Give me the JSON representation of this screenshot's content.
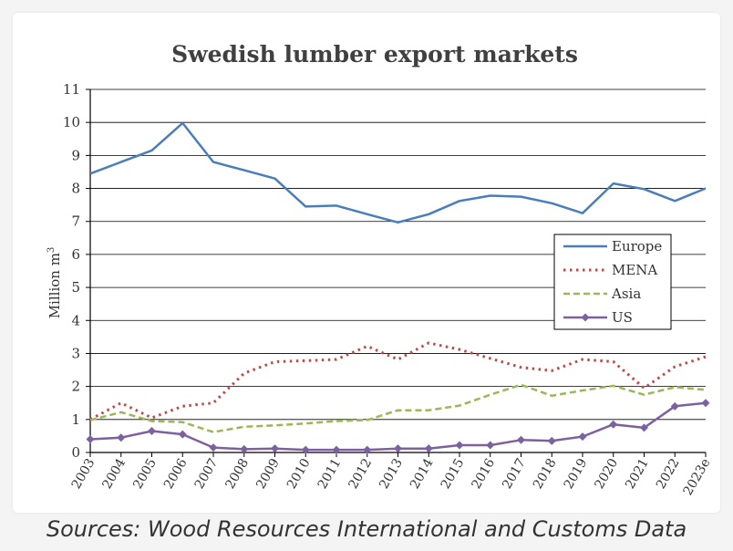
{
  "chart_data": {
    "type": "line",
    "title": "Swedish lumber export markets",
    "ylabel": "Million m",
    "ylabel_sup": "3",
    "xlabel": "",
    "ylim": [
      0,
      11
    ],
    "yticks": [
      "0",
      "1",
      "2",
      "3",
      "4",
      "5",
      "6",
      "7",
      "8",
      "9",
      "10",
      "11"
    ],
    "categories": [
      "2003",
      "2004",
      "2005",
      "2006",
      "2007",
      "2008",
      "2009",
      "2010",
      "2011",
      "2012",
      "2013",
      "2014",
      "2015",
      "2016",
      "2017",
      "2018",
      "2019",
      "2020",
      "2021",
      "2022",
      "2023e"
    ],
    "grid": true,
    "legend_position": "right-middle",
    "series": [
      {
        "name": "Europe",
        "style": "solid",
        "color": "#4a7ebb",
        "marker": "none",
        "values": [
          8.45,
          8.8,
          9.15,
          9.98,
          8.8,
          8.55,
          8.3,
          7.45,
          7.48,
          7.22,
          6.97,
          7.22,
          7.62,
          7.78,
          7.75,
          7.55,
          7.25,
          8.15,
          7.98,
          7.62,
          8.0
        ]
      },
      {
        "name": "MENA",
        "style": "dotted",
        "color": "#be4b48",
        "marker": "none",
        "values": [
          1.0,
          1.5,
          1.05,
          1.4,
          1.5,
          2.4,
          2.75,
          2.78,
          2.82,
          3.22,
          2.82,
          3.32,
          3.12,
          2.85,
          2.58,
          2.48,
          2.82,
          2.75,
          1.95,
          2.6,
          2.9
        ]
      },
      {
        "name": "Asia",
        "style": "dashed",
        "color": "#98b954",
        "marker": "none",
        "values": [
          0.98,
          1.22,
          0.95,
          0.92,
          0.62,
          0.78,
          0.82,
          0.88,
          0.95,
          0.98,
          1.28,
          1.28,
          1.42,
          1.75,
          2.05,
          1.72,
          1.88,
          2.02,
          1.75,
          1.98,
          1.9
        ]
      },
      {
        "name": "US",
        "style": "solid",
        "color": "#7d60a0",
        "marker": "diamond",
        "values": [
          0.4,
          0.45,
          0.65,
          0.55,
          0.15,
          0.1,
          0.12,
          0.08,
          0.08,
          0.08,
          0.12,
          0.12,
          0.22,
          0.22,
          0.38,
          0.35,
          0.48,
          0.85,
          0.75,
          1.4,
          1.5
        ]
      }
    ]
  },
  "caption": "Sources: Wood Resources International and Customs Data"
}
